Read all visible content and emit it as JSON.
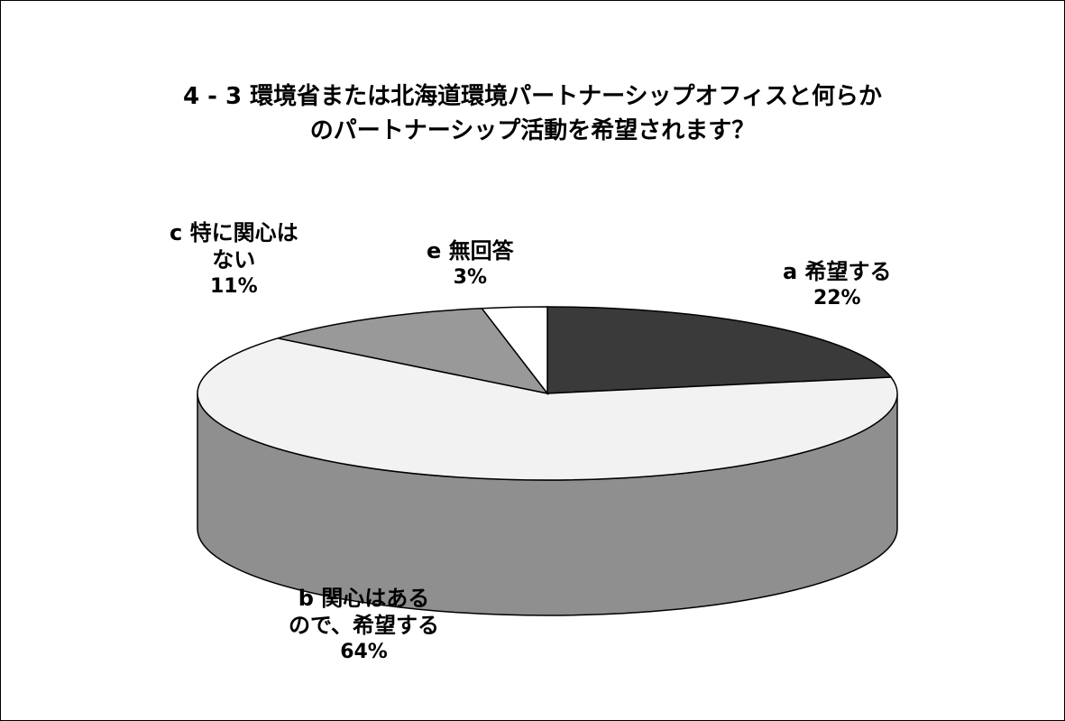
{
  "chart_data": {
    "type": "pie",
    "title_lines": [
      "4 - 3 環境省または北海道環境パートナーシップオフィスと何らか",
      "のパートナーシップ活動を希望されます？"
    ],
    "series": [
      {
        "key": "a",
        "label_lines": [
          "a 希望する"
        ],
        "value": 22,
        "percent_label": "22%",
        "color": "#3a3a3a"
      },
      {
        "key": "b",
        "label_lines": [
          "b 関心はある",
          "ので、希望する"
        ],
        "value": 64,
        "percent_label": "64%",
        "color": "#f2f2f2"
      },
      {
        "key": "c",
        "label_lines": [
          "c 特に関心は",
          "ない"
        ],
        "value": 11,
        "percent_label": "11%",
        "color": "#999999"
      },
      {
        "key": "e",
        "label_lines": [
          "e 無回答"
        ],
        "value": 3,
        "percent_label": "3%",
        "color": "#ffffff"
      }
    ],
    "style": "3d-pie",
    "side_color": "#8f8f8f"
  }
}
